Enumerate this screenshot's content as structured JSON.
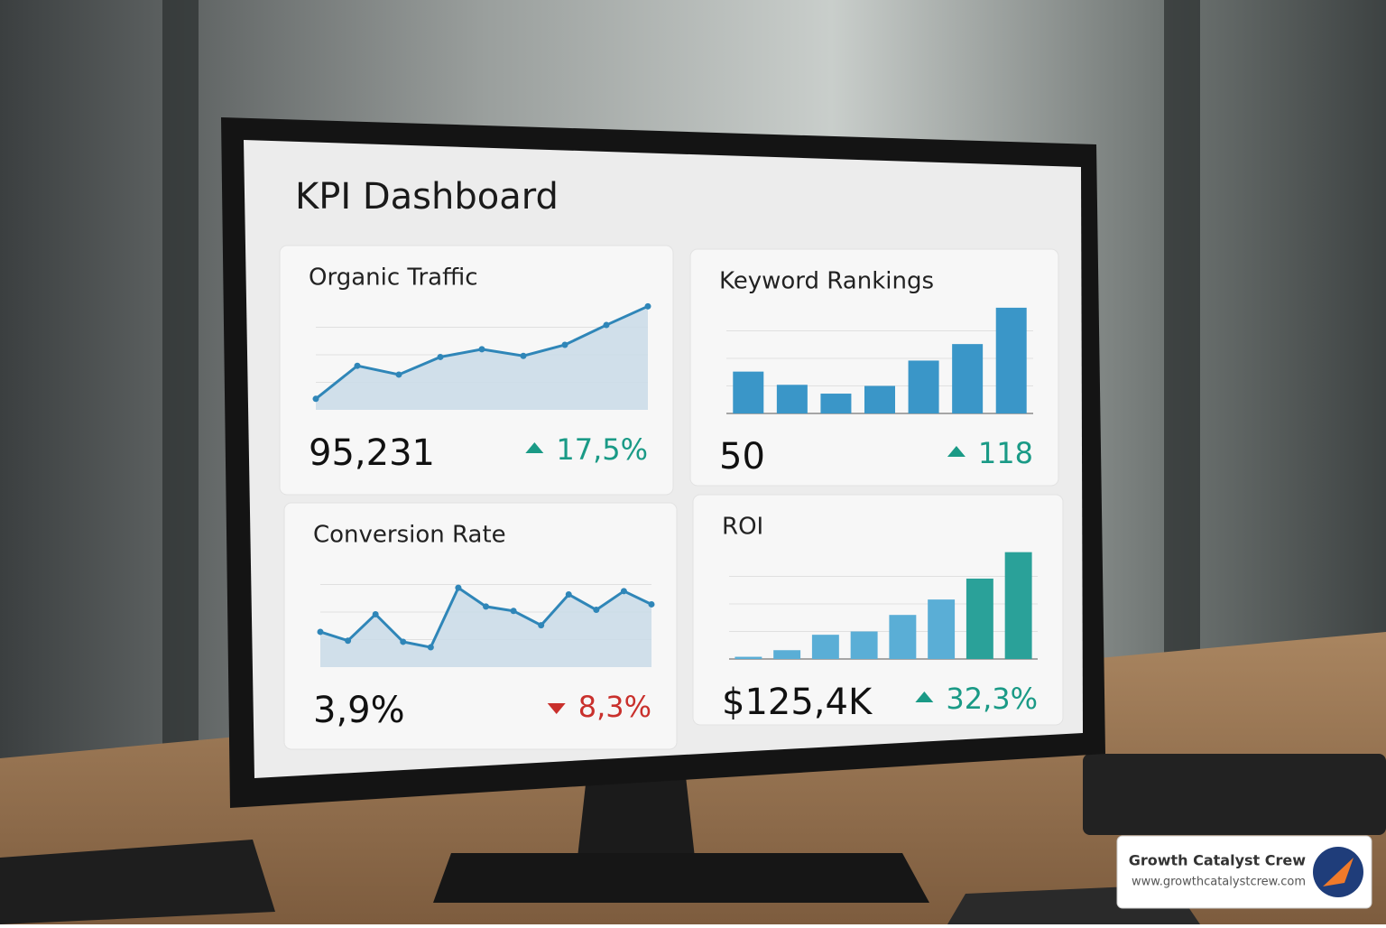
{
  "header": {
    "title": "KPI Dashboard"
  },
  "cards": [
    {
      "title": "Organic Traffic",
      "value": "95,231",
      "change": "17,5%",
      "trend": "up",
      "chart": {
        "type": "line",
        "color": "#2f86b8",
        "values": [
          10,
          40,
          32,
          48,
          55,
          49,
          59,
          77,
          94
        ],
        "ylim": [
          0,
          100
        ]
      }
    },
    {
      "title": "Keyword Rankings",
      "value": "50",
      "change": "118",
      "trend": "up",
      "chart": {
        "type": "bar",
        "color": "#3a96c8",
        "values": [
          38,
          26,
          18,
          25,
          48,
          63,
          96
        ],
        "ylim": [
          0,
          100
        ]
      }
    },
    {
      "title": "Conversion Rate",
      "value": "3,9%",
      "change": "8,3%",
      "trend": "down",
      "chart": {
        "type": "line",
        "color": "#2f86b8",
        "values": [
          32,
          24,
          48,
          23,
          18,
          72,
          55,
          51,
          38,
          66,
          52,
          69,
          57
        ],
        "ylim": [
          0,
          100
        ]
      }
    },
    {
      "title": "ROI",
      "value": "$125,4K",
      "change": "32,3%",
      "trend": "up",
      "chart": {
        "type": "bar",
        "color": "#5aaed6",
        "values": [
          2,
          8,
          22,
          25,
          40,
          54,
          73,
          97
        ],
        "ylim": [
          0,
          100
        ]
      }
    }
  ],
  "watermark": {
    "name": "Growth Catalyst Crew",
    "url": "www.growthcatalystcrew.com"
  }
}
